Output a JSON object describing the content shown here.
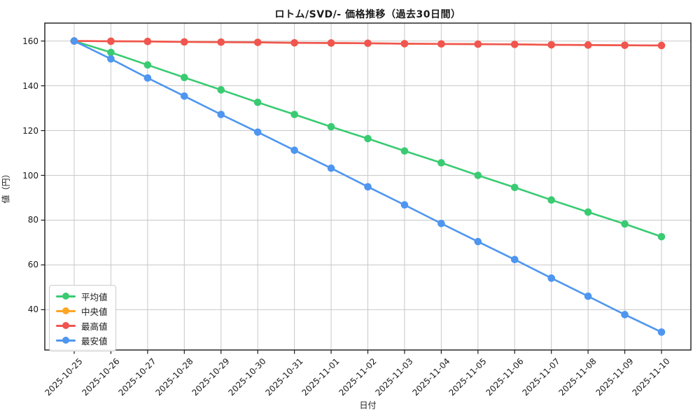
{
  "title": "ロトム/SVD/- 価格推移（過去30日間）",
  "chart_data": {
    "type": "line",
    "title": "ロトム/SVD/- 価格推移（過去30日間）",
    "xlabel": "日付",
    "ylabel": "値（円）",
    "x": [
      "2025-10-25",
      "2025-10-26",
      "2025-10-27",
      "2025-10-28",
      "2025-10-29",
      "2025-10-30",
      "2025-10-31",
      "2025-11-01",
      "2025-11-02",
      "2025-11-03",
      "2025-11-04",
      "2025-11-05",
      "2025-11-06",
      "2025-11-07",
      "2025-11-08",
      "2025-11-09",
      "2025-11-10"
    ],
    "series": [
      {
        "name": "平均値",
        "color": "#3acb72",
        "values": [
          160.0,
          154.9,
          149.3,
          143.7,
          138.2,
          132.6,
          127.2,
          121.7,
          116.4,
          110.9,
          105.6,
          100.0,
          94.6,
          89.0,
          83.6,
          78.3,
          72.6
        ]
      },
      {
        "name": "中央値",
        "color": "#ffa625",
        "values": [
          160.0,
          159.9,
          159.8,
          159.6,
          159.5,
          159.4,
          159.2,
          159.1,
          159.0,
          158.8,
          158.7,
          158.6,
          158.5,
          158.3,
          158.2,
          158.1,
          158.0
        ]
      },
      {
        "name": "最高値",
        "color": "#f05550",
        "values": [
          160.0,
          159.9,
          159.8,
          159.6,
          159.5,
          159.4,
          159.2,
          159.1,
          159.0,
          158.8,
          158.7,
          158.6,
          158.5,
          158.3,
          158.2,
          158.1,
          158.0
        ]
      },
      {
        "name": "最安値",
        "color": "#4e96f0",
        "values": [
          160.0,
          152.0,
          143.5,
          135.4,
          127.2,
          119.3,
          111.2,
          103.2,
          94.9,
          86.8,
          78.5,
          70.4,
          62.4,
          54.1,
          46.0,
          37.8,
          30.0
        ]
      }
    ],
    "ylim": [
      22,
      168
    ],
    "yticks": [
      40,
      60,
      80,
      100,
      120,
      140,
      160
    ],
    "grid": true,
    "legend_position": "lower left",
    "grid_color": "#c8c8c8",
    "spine_color": "#1a1a1a",
    "background": "#ffffff"
  }
}
